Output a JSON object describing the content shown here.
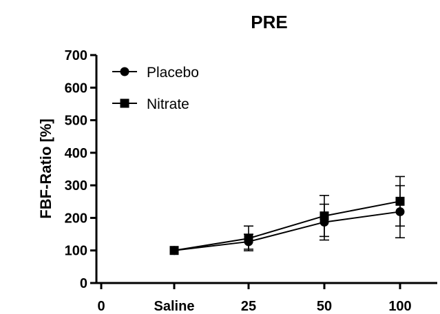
{
  "chart_data": {
    "type": "line",
    "title": "PRE",
    "xlabel": "",
    "ylabel": "FBF-Ratio [%]",
    "categories": [
      "0",
      "Saline",
      "25",
      "50",
      "100"
    ],
    "ylim": [
      0,
      700
    ],
    "yticks": [
      "0",
      "100",
      "200",
      "300",
      "400",
      "500",
      "600",
      "700"
    ],
    "legend_position": "top-left",
    "grid": false,
    "series": [
      {
        "name": "Placebo",
        "marker": "circle",
        "x": [
          "Saline",
          "25",
          "50",
          "100"
        ],
        "values": [
          100,
          127,
          187,
          219
        ],
        "error": [
          0,
          23,
          55,
          80
        ]
      },
      {
        "name": "Nitrate",
        "marker": "square",
        "x": [
          "Saline",
          "25",
          "50",
          "100"
        ],
        "values": [
          100,
          137,
          206,
          251
        ],
        "error": [
          0,
          38,
          63,
          76
        ]
      }
    ]
  }
}
